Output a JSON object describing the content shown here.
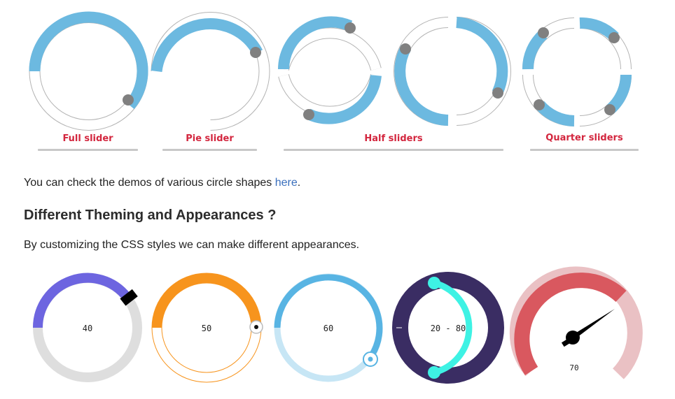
{
  "captions": {
    "full": "Full slider",
    "pie": "Pie slider",
    "half": "Half sliders",
    "quarter": "Quarter sliders"
  },
  "demo_text": {
    "before": "You can check the demos of various circle shapes ",
    "link": "here",
    "after": "."
  },
  "theming_heading": "Different Theming and Appearances ?",
  "theming_text": "By customizing the CSS styles we can make different appearances.",
  "themed_sliders": [
    {
      "value": "40",
      "range_color": "#6d65e0",
      "track_color": "#dedede"
    },
    {
      "value": "50",
      "range_color": "#f7941d",
      "track_color": "#ffffff"
    },
    {
      "value": "60",
      "range_color": "#58b4e3",
      "track_color": "#c7e6f5"
    },
    {
      "value": "20 - 80",
      "range_color": "#3ef2e4",
      "track_color": "#3a2d63"
    },
    {
      "value": "70",
      "range_color": "#d9585f",
      "track_color": "#eac1c4"
    }
  ],
  "colors": {
    "accent_blue": "#6cb9e0",
    "handle_gray": "#808080",
    "caption_red": "#d3263e",
    "link_blue": "#3a6fbd"
  }
}
